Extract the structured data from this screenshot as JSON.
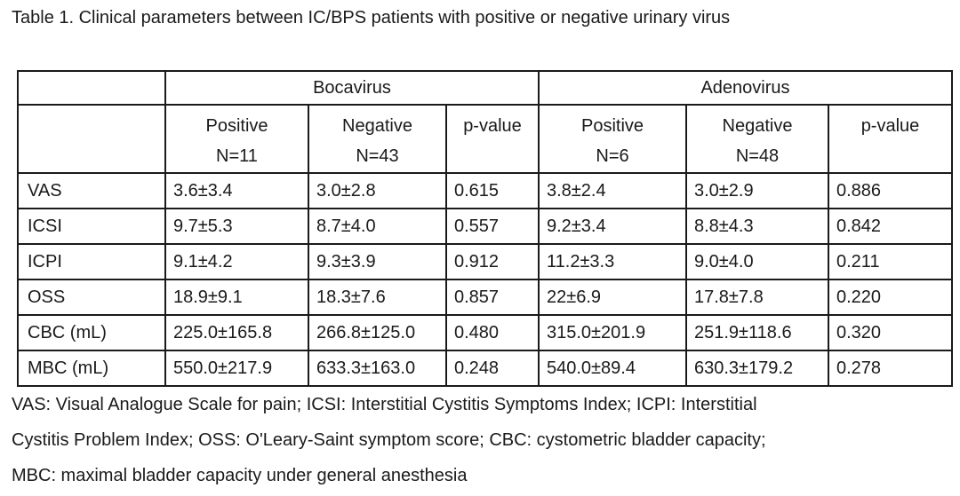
{
  "caption": "Table 1. Clinical parameters between IC/BPS patients with positive or negative urinary virus",
  "groups": [
    "Bocavirus",
    "Adenovirus"
  ],
  "subheaders": {
    "positive": "Positive",
    "negative": "Negative",
    "pvalue": "p-value"
  },
  "sample_sizes": {
    "bocavirus_positive": "N=11",
    "bocavirus_negative": "N=43",
    "adenovirus_positive": "N=6",
    "adenovirus_negative": "N=48"
  },
  "rows": [
    {
      "label": "VAS",
      "boca_pos": "3.6±3.4",
      "boca_neg": "3.0±2.8",
      "boca_p": "0.615",
      "adeno_pos": "3.8±2.4",
      "adeno_neg": "3.0±2.9",
      "adeno_p": "0.886"
    },
    {
      "label": "ICSI",
      "boca_pos": "9.7±5.3",
      "boca_neg": "8.7±4.0",
      "boca_p": "0.557",
      "adeno_pos": "9.2±3.4",
      "adeno_neg": "8.8±4.3",
      "adeno_p": "0.842"
    },
    {
      "label": "ICPI",
      "boca_pos": "9.1±4.2",
      "boca_neg": "9.3±3.9",
      "boca_p": "0.912",
      "adeno_pos": "11.2±3.3",
      "adeno_neg": "9.0±4.0",
      "adeno_p": "0.211"
    },
    {
      "label": "OSS",
      "boca_pos": "18.9±9.1",
      "boca_neg": "18.3±7.6",
      "boca_p": "0.857",
      "adeno_pos": "22±6.9",
      "adeno_neg": "17.8±7.8",
      "adeno_p": "0.220"
    },
    {
      "label": "CBC (mL)",
      "boca_pos": "225.0±165.8",
      "boca_neg": "266.8±125.0",
      "boca_p": "0.480",
      "adeno_pos": "315.0±201.9",
      "adeno_neg": "251.9±118.6",
      "adeno_p": "0.320"
    },
    {
      "label": "MBC (mL)",
      "boca_pos": "550.0±217.9",
      "boca_neg": "633.3±163.0",
      "boca_p": "0.248",
      "adeno_pos": "540.0±89.4",
      "adeno_neg": "630.3±179.2",
      "adeno_p": "0.278"
    }
  ],
  "footnote_lines": [
    "VAS: Visual Analogue Scale for pain; ICSI: Interstitial Cystitis Symptoms Index; ICPI: Interstitial",
    "Cystitis Problem Index; OSS: O'Leary-Saint symptom score; CBC: cystometric bladder capacity;",
    "MBC: maximal bladder capacity under general anesthesia"
  ]
}
